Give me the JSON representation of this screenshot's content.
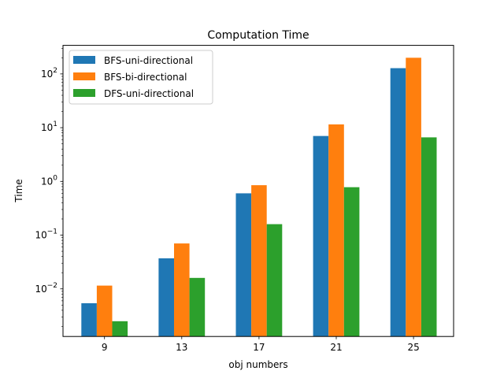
{
  "chart_data": {
    "type": "bar",
    "title": "Computation Time",
    "xlabel": "obj numbers",
    "ylabel": "Time",
    "yscale": "log",
    "ylim": [
      0.0013,
      340
    ],
    "yticks": [
      {
        "value": 0.01,
        "base": "10",
        "exp": "−2"
      },
      {
        "value": 0.1,
        "base": "10",
        "exp": "−1"
      },
      {
        "value": 1,
        "base": "10",
        "exp": "0"
      },
      {
        "value": 10,
        "base": "10",
        "exp": "1"
      },
      {
        "value": 100,
        "base": "10",
        "exp": "2"
      }
    ],
    "categories": [
      "9",
      "13",
      "17",
      "21",
      "25"
    ],
    "series": [
      {
        "name": "BFS-uni-directional",
        "color": "#1f77b4",
        "values": [
          0.0054,
          0.037,
          0.6,
          7.0,
          128
        ]
      },
      {
        "name": "BFS-bi-directional",
        "color": "#ff7f0e",
        "values": [
          0.0115,
          0.07,
          0.85,
          11.5,
          200
        ]
      },
      {
        "name": "DFS-uni-directional",
        "color": "#2ca02c",
        "values": [
          0.0025,
          0.016,
          0.16,
          0.78,
          6.6
        ]
      }
    ],
    "legend_position": "top-left",
    "grid": false
  }
}
